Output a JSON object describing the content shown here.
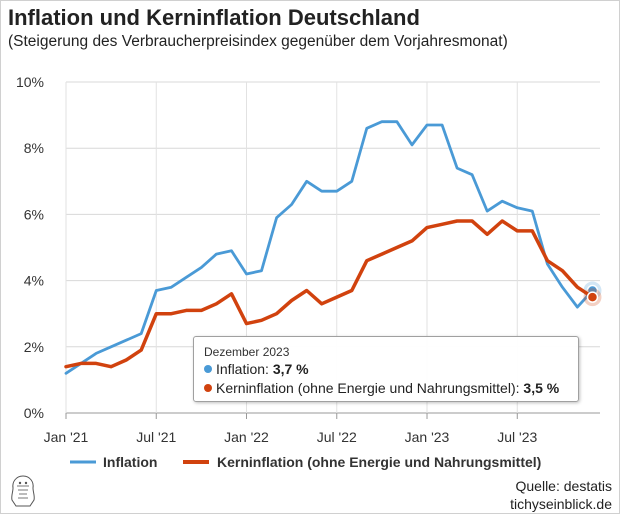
{
  "header": {
    "title": "Inflation und Kerninflation Deutschland",
    "subtitle": "(Steigerung des Verbraucherpreisindex gegenüber dem Vorjahresmonat)"
  },
  "tooltip": {
    "header": "Dezember 2023",
    "rows": [
      {
        "label": "Inflation:",
        "value": "3,7 %",
        "color": "#4a9ad6"
      },
      {
        "label": "Kerninflation (ohne Energie und Nahrungsmittel):",
        "value": "3,5 %",
        "color": "#d1420e"
      }
    ]
  },
  "source": {
    "line1": "Quelle: destatis",
    "line2": "tichyseinblick.de"
  },
  "chart_data": {
    "type": "line",
    "x": [
      "2021-01",
      "2021-02",
      "2021-03",
      "2021-04",
      "2021-05",
      "2021-06",
      "2021-07",
      "2021-08",
      "2021-09",
      "2021-10",
      "2021-11",
      "2021-12",
      "2022-01",
      "2022-02",
      "2022-03",
      "2022-04",
      "2022-05",
      "2022-06",
      "2022-07",
      "2022-08",
      "2022-09",
      "2022-10",
      "2022-11",
      "2022-12",
      "2023-01",
      "2023-02",
      "2023-03",
      "2023-04",
      "2023-05",
      "2023-06",
      "2023-07",
      "2023-08",
      "2023-09",
      "2023-10",
      "2023-11",
      "2023-12"
    ],
    "x_tick_labels": [
      "Jan '21",
      "Jul '21",
      "Jan '22",
      "Jul '22",
      "Jan '23",
      "Jul '23"
    ],
    "y_tick_labels": [
      "0%",
      "2%",
      "4%",
      "6%",
      "8%",
      "10%"
    ],
    "ylim": [
      0,
      10
    ],
    "grid": true,
    "legend_position": "bottom",
    "series": [
      {
        "name": "Inflation",
        "color": "#4a9ad6",
        "values": [
          1.2,
          1.5,
          1.8,
          2.0,
          2.2,
          2.4,
          3.7,
          3.8,
          4.1,
          4.4,
          4.8,
          4.9,
          4.2,
          4.3,
          5.9,
          6.3,
          7.0,
          6.7,
          6.7,
          7.0,
          8.6,
          8.8,
          8.8,
          8.1,
          8.7,
          8.7,
          7.4,
          7.2,
          6.1,
          6.4,
          6.2,
          6.1,
          4.5,
          3.8,
          3.2,
          3.7
        ]
      },
      {
        "name": "Kerninflation (ohne Energie und Nahrungsmittel)",
        "color": "#d1420e",
        "values": [
          1.4,
          1.5,
          1.5,
          1.4,
          1.6,
          1.9,
          3.0,
          3.0,
          3.1,
          3.1,
          3.3,
          3.6,
          2.7,
          2.8,
          3.0,
          3.4,
          3.7,
          3.3,
          3.5,
          3.7,
          4.6,
          4.8,
          5.0,
          5.2,
          5.6,
          5.7,
          5.8,
          5.8,
          5.4,
          5.8,
          5.5,
          5.5,
          4.6,
          4.3,
          3.8,
          3.5
        ]
      }
    ]
  }
}
